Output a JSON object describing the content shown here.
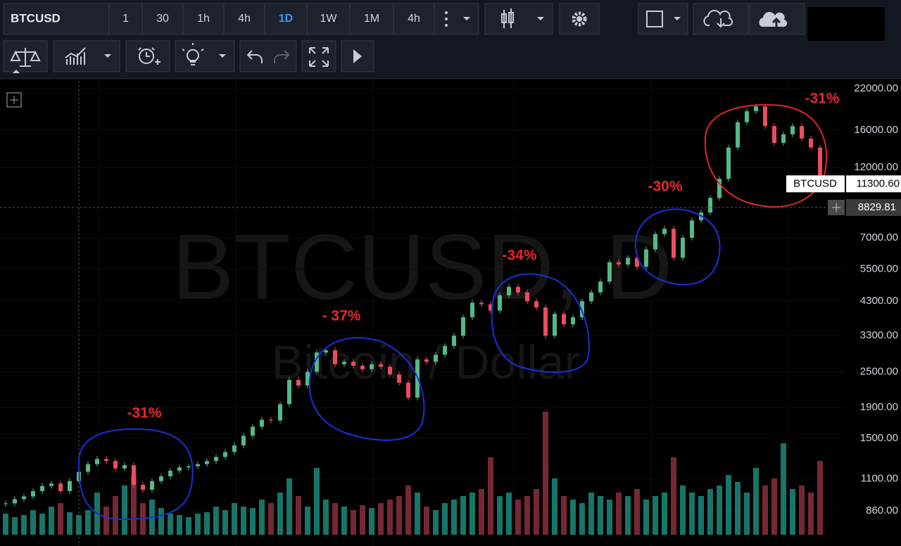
{
  "toolbar": {
    "symbol": "BTCUSD",
    "intervals": [
      "1",
      "30",
      "1h",
      "4h",
      "1D",
      "1W",
      "1M",
      "4h"
    ]
  },
  "chart_data": {
    "type": "candlestick",
    "watermark": "BTCUSD, D",
    "watermark_subtitle": "Bitcoin / Dollar",
    "symbol_tag": "BTCUSD",
    "last_price": {
      "value": 11300.6,
      "label": "11300.60"
    },
    "crosshair_price": 8829.81,
    "log_scale": true,
    "ylim": [
      656,
      23730
    ],
    "yticks": [
      {
        "value": 22000,
        "label": "22000.00"
      },
      {
        "value": 16000,
        "label": "16000.00"
      },
      {
        "value": 12000,
        "label": "12000.00"
      },
      {
        "value": 7000,
        "label": "7000.00"
      },
      {
        "value": 5500,
        "label": "5500.00"
      },
      {
        "value": 4300,
        "label": "4300.00"
      },
      {
        "value": 3300,
        "label": "3300.00"
      },
      {
        "value": 2500,
        "label": "2500.00"
      },
      {
        "value": 1900,
        "label": "1900.00"
      },
      {
        "value": 1500,
        "label": "1500.00"
      },
      {
        "value": 1100,
        "label": "1100.00"
      },
      {
        "value": 860,
        "label": "860.00"
      }
    ],
    "up_color": "#53b987",
    "down_color": "#eb4d5c",
    "closes": [
      910,
      940,
      960,
      1000,
      1040,
      1060,
      1000,
      1080,
      1160,
      1230,
      1280,
      1260,
      1190,
      1220,
      1050,
      1010,
      1080,
      1120,
      1170,
      1200,
      1210,
      1230,
      1260,
      1300,
      1350,
      1420,
      1530,
      1640,
      1730,
      1720,
      1950,
      2350,
      2250,
      2500,
      2900,
      2950,
      2650,
      2700,
      2620,
      2550,
      2650,
      2600,
      2450,
      2300,
      2050,
      2750,
      2700,
      2850,
      3050,
      3300,
      3800,
      4250,
      4200,
      4000,
      4500,
      4800,
      4600,
      4300,
      4100,
      3300,
      3900,
      3600,
      3800,
      4300,
      4600,
      5000,
      5800,
      5700,
      6000,
      5600,
      6400,
      7200,
      7500,
      6000,
      7000,
      8000,
      8500,
      9500,
      11000,
      14000,
      17000,
      18500,
      19200,
      16500,
      14500,
      15500,
      16500,
      15000,
      14000,
      11300
    ],
    "volumes": [
      30,
      25,
      28,
      35,
      30,
      40,
      45,
      32,
      28,
      35,
      60,
      40,
      55,
      70,
      85,
      45,
      50,
      38,
      30,
      28,
      25,
      30,
      32,
      40,
      35,
      45,
      40,
      38,
      50,
      45,
      60,
      80,
      55,
      40,
      95,
      50,
      45,
      40,
      35,
      42,
      38,
      45,
      50,
      55,
      70,
      60,
      40,
      35,
      45,
      50,
      55,
      60,
      65,
      110,
      55,
      60,
      50,
      55,
      65,
      175,
      80,
      55,
      50,
      45,
      60,
      55,
      50,
      60,
      55,
      65,
      50,
      55,
      60,
      110,
      70,
      60,
      55,
      65,
      70,
      85,
      75,
      60,
      95,
      70,
      80,
      130,
      65,
      70,
      60,
      105
    ],
    "annotations": [
      "-31%",
      "- 37%",
      "-34%",
      "-30%",
      "-31%"
    ]
  }
}
